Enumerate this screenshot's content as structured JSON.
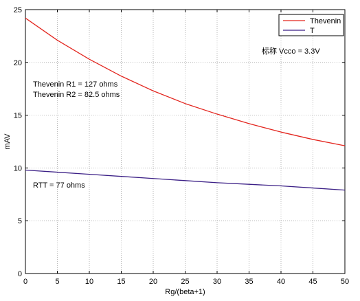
{
  "chart_data": {
    "type": "line",
    "xlabel": "Rg/(beta+1)",
    "ylabel": "mAV",
    "xlim": [
      0,
      50
    ],
    "ylim": [
      0,
      25
    ],
    "xticks": [
      0,
      5,
      10,
      15,
      20,
      25,
      30,
      35,
      40,
      45,
      50
    ],
    "yticks": [
      0,
      5,
      10,
      15,
      20,
      25
    ],
    "grid": true,
    "legend_position": "top-right",
    "series": [
      {
        "name": "Thevenin",
        "color": "#e3261f",
        "x": [
          0,
          5,
          10,
          15,
          20,
          25,
          30,
          35,
          40,
          45,
          50
        ],
        "values": [
          24.2,
          22.1,
          20.3,
          18.7,
          17.3,
          16.1,
          15.1,
          14.2,
          13.4,
          12.7,
          12.1
        ]
      },
      {
        "name": "T",
        "color": "#3b1f86",
        "x": [
          0,
          5,
          10,
          15,
          20,
          25,
          30,
          35,
          40,
          45,
          50
        ],
        "values": [
          9.8,
          9.6,
          9.4,
          9.2,
          9.0,
          8.8,
          8.6,
          8.45,
          8.3,
          8.1,
          7.9
        ]
      }
    ],
    "annotations": [
      {
        "text": "标称 Vcco = 3.3V"
      },
      {
        "text": "Thevenin R1 = 127 ohms"
      },
      {
        "text": "Thevenin R2 = 82.5 ohms"
      },
      {
        "text": "RTT = 77 ohms"
      }
    ]
  }
}
